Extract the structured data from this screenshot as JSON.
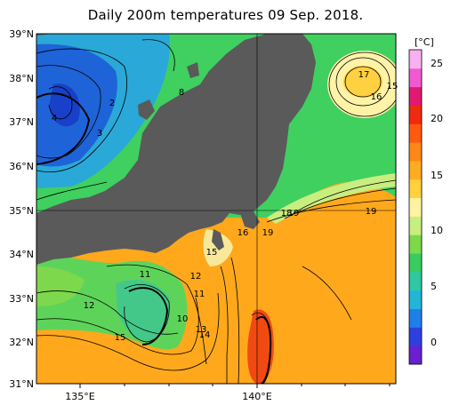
{
  "title": "Daily 200m temperatures 09 Sep. 2018.",
  "axes": {
    "lat_labels": [
      "39°N",
      "38°N",
      "37°N",
      "36°N",
      "35°N",
      "34°N",
      "33°N",
      "32°N",
      "31°N"
    ],
    "lon_labels": [
      "135°E",
      "140°E"
    ]
  },
  "colorbar": {
    "unit": "[°C]",
    "ticks": [
      "25",
      "20",
      "15",
      "10",
      "5",
      "0"
    ],
    "colors": [
      "#6a1fd0",
      "#2e3fe0",
      "#1e7fe8",
      "#22b5d8",
      "#2ec9a0",
      "#39cc60",
      "#7cd94a",
      "#c8ee80",
      "#fff3a0",
      "#ffd040",
      "#ffac20",
      "#ff8818",
      "#ff5a10",
      "#f02a10",
      "#e01a70",
      "#f05ad0",
      "#f8b0f0"
    ]
  },
  "contour_labels": [
    "2",
    "3",
    "4",
    "8",
    "17",
    "16",
    "15",
    "16",
    "18",
    "19",
    "19",
    "19",
    "15",
    "11",
    "12",
    "11",
    "12",
    "10",
    "13",
    "14",
    "15"
  ],
  "colors": {
    "land": "#5a5a5a",
    "frame": "#000000"
  }
}
